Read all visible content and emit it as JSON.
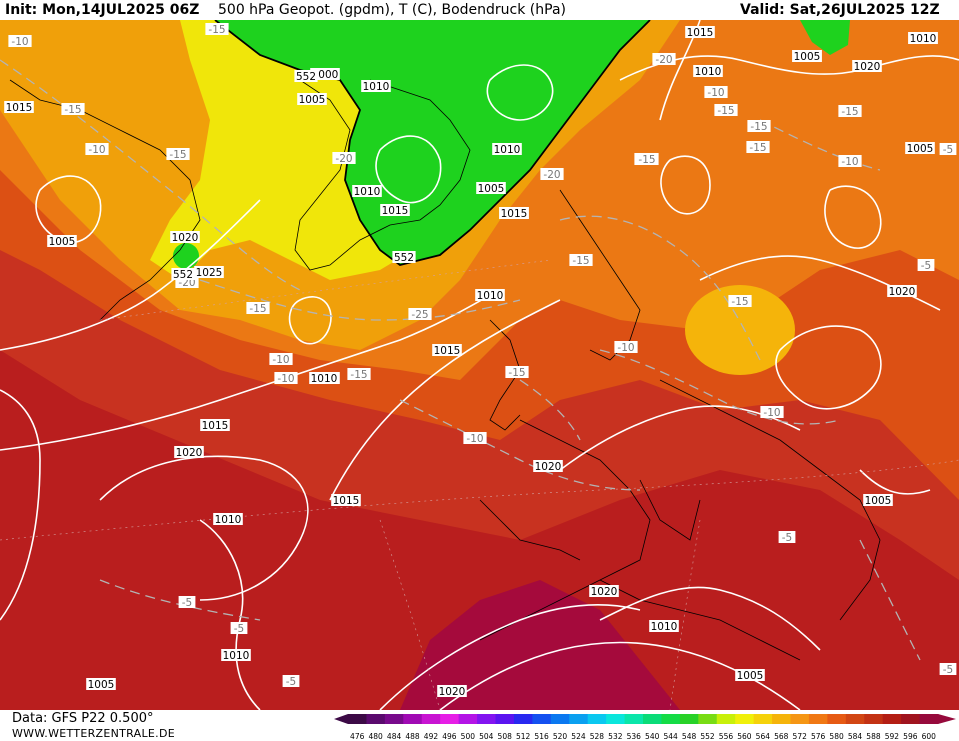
{
  "header": {
    "init": "Init: Mon,14JUL2025 06Z",
    "title": "500 hPa Geopot. (gpdm), T (C), Bodendruck (hPa)",
    "valid": "Valid: Sat,26JUL2025 12Z"
  },
  "footer": {
    "data_source": "Data: GFS P22 0.500°",
    "website": "WWW.WETTERZENTRALE.DE"
  },
  "legend": {
    "values": [
      "476",
      "480",
      "484",
      "488",
      "492",
      "496",
      "500",
      "504",
      "508",
      "512",
      "516",
      "520",
      "524",
      "528",
      "532",
      "536",
      "540",
      "544",
      "548",
      "552",
      "556",
      "560",
      "564",
      "568",
      "572",
      "576",
      "580",
      "584",
      "588",
      "592",
      "596",
      "600"
    ],
    "colors": [
      "#3c0a46",
      "#5a0a6e",
      "#780a8c",
      "#a00ab4",
      "#c814d2",
      "#e61ee6",
      "#b414e6",
      "#8214f0",
      "#5a14f0",
      "#2828f0",
      "#1450f0",
      "#0a78f0",
      "#0aa0f0",
      "#0ac8f0",
      "#0ae6dc",
      "#0ae6aa",
      "#0adc78",
      "#14dc46",
      "#28d228",
      "#78dc14",
      "#c8f00a",
      "#f0f00a",
      "#f5d20a",
      "#f5b40a",
      "#f59614",
      "#f07814",
      "#e65a14",
      "#d24614",
      "#c33214",
      "#b41e14",
      "#a0141e",
      "#960a3c"
    ]
  },
  "map": {
    "geopotential_labels": [
      "552",
      "552",
      "552"
    ],
    "pressure_labels": [
      "1015",
      "1005",
      "1010",
      "1020",
      "1000",
      "1005",
      "1010",
      "1010",
      "1015",
      "1010",
      "1005",
      "1005",
      "1010",
      "1015",
      "1010",
      "1005",
      "1020",
      "1025",
      "1010",
      "1020",
      "1015",
      "1025",
      "1015",
      "1020",
      "1020",
      "1015",
      "1010",
      "1020",
      "1010",
      "1010",
      "1005",
      "1020",
      "1005",
      "1005",
      "1010",
      "1005",
      "1010",
      "1015"
    ],
    "temperature_labels": [
      "-10",
      "-15",
      "-10",
      "-15",
      "-15",
      "-20",
      "-20",
      "-20",
      "-15",
      "-20",
      "-15",
      "-15",
      "-15",
      "-10",
      "-15",
      "-25",
      "-10",
      "-15",
      "-15",
      "-10",
      "-10",
      "-15",
      "-10",
      "-5",
      "-5",
      "-5",
      "-5",
      "-5",
      "-10",
      "-15",
      "-15",
      "-10",
      "-15",
      "-5",
      "-5",
      "-5"
    ],
    "colors": {
      "green": "#1ed21e",
      "yellow": "#f0f00a",
      "orange": "#f0a00a",
      "dark_orange": "#e66414",
      "red": "#c8321e",
      "dark_red": "#b4141e",
      "crimson": "#a00a3c"
    }
  }
}
